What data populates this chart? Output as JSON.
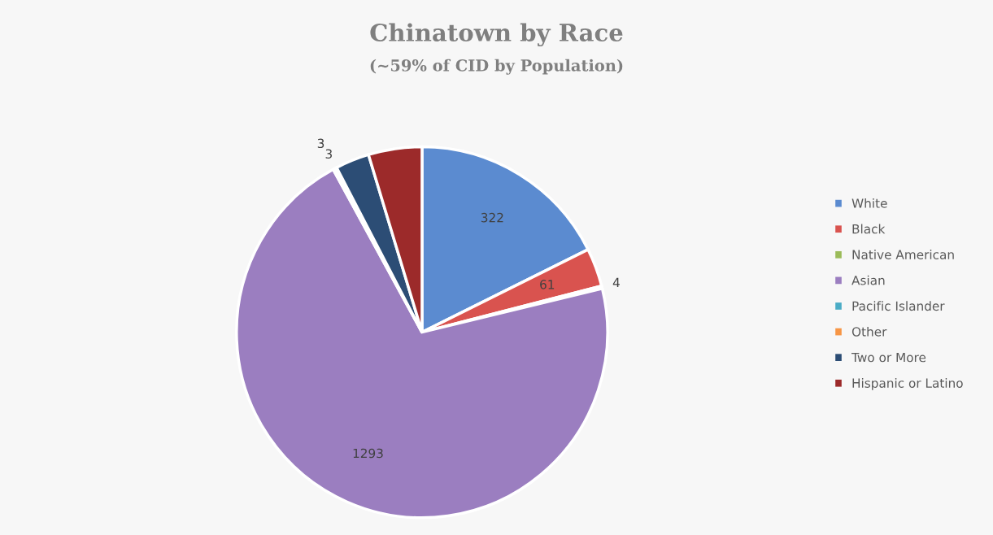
{
  "chart_data": {
    "type": "pie",
    "title": "Chinatown by Race",
    "subtitle": "(~59% of CID by Population)",
    "categories": [
      "White",
      "Black",
      "Native American",
      "Asian",
      "Pacific Islander",
      "Other",
      "Two or More",
      "Hispanic or Latino"
    ],
    "values": [
      322,
      61,
      4,
      1293,
      3,
      3,
      54,
      85
    ],
    "value_labels": [
      "322",
      "61",
      "4",
      "1293",
      "3",
      "3",
      null,
      null
    ],
    "colors": [
      "#5b8bd0",
      "#d9534f",
      "#9bbb59",
      "#9b7ec0",
      "#4bacc6",
      "#f79646",
      "#2c4d75",
      "#9c2a2a"
    ],
    "legend": "right"
  }
}
